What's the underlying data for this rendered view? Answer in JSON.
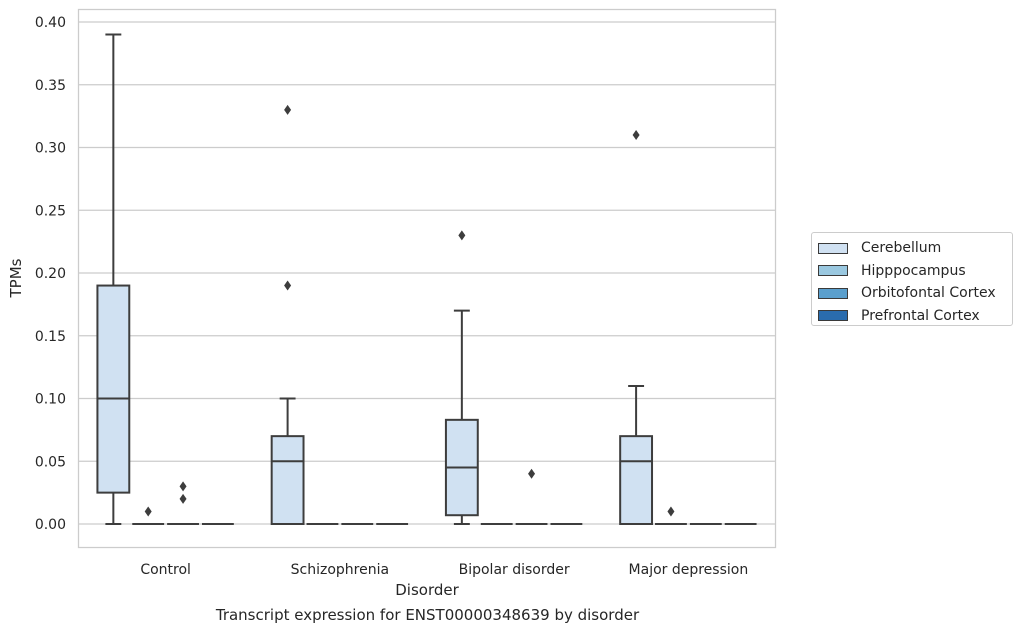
{
  "chart_data": {
    "type": "box",
    "title": "Transcript expression for ENST00000348639 by disorder",
    "xlabel": "Disorder",
    "ylabel": "TPMs",
    "ylim": [
      -0.02,
      0.41
    ],
    "yticks": [
      "0.00",
      "0.05",
      "0.10",
      "0.15",
      "0.20",
      "0.25",
      "0.30",
      "0.35",
      "0.40"
    ],
    "ytick_values": [
      0,
      0.05,
      0.1,
      0.15,
      0.2,
      0.25,
      0.3,
      0.35,
      0.4
    ],
    "grid": true,
    "legend_position": "right",
    "categories": [
      "Control",
      "Schizophrenia",
      "Bipolar disorder",
      "Major depression"
    ],
    "series": [
      {
        "name": "Cerebellum",
        "color": "#d0e1f2",
        "boxes": [
          {
            "whislo": 0.0,
            "q1": 0.025,
            "median": 0.1,
            "q3": 0.19,
            "whishi": 0.39,
            "fliers": []
          },
          {
            "whislo": 0.0,
            "q1": 0.0,
            "median": 0.05,
            "q3": 0.07,
            "whishi": 0.1,
            "fliers": [
              0.19,
              0.33
            ]
          },
          {
            "whislo": 0.0,
            "q1": 0.007,
            "median": 0.045,
            "q3": 0.083,
            "whishi": 0.17,
            "fliers": [
              0.23
            ]
          },
          {
            "whislo": 0.0,
            "q1": 0.0,
            "median": 0.05,
            "q3": 0.07,
            "whishi": 0.11,
            "fliers": [
              0.31
            ]
          }
        ]
      },
      {
        "name": "Hipppocampus",
        "color": "#9ac8e0",
        "boxes": [
          {
            "whislo": 0.0,
            "q1": 0.0,
            "median": 0.0,
            "q3": 0.0,
            "whishi": 0.0,
            "fliers": [
              0.01
            ]
          },
          {
            "whislo": 0.0,
            "q1": 0.0,
            "median": 0.0,
            "q3": 0.0,
            "whishi": 0.0,
            "fliers": []
          },
          {
            "whislo": 0.0,
            "q1": 0.0,
            "median": 0.0,
            "q3": 0.0,
            "whishi": 0.0,
            "fliers": []
          },
          {
            "whislo": 0.0,
            "q1": 0.0,
            "median": 0.0,
            "q3": 0.0,
            "whishi": 0.0,
            "fliers": [
              0.01
            ]
          }
        ]
      },
      {
        "name": "Orbitofontal Cortex",
        "color": "#5a9fcd",
        "boxes": [
          {
            "whislo": 0.0,
            "q1": 0.0,
            "median": 0.0,
            "q3": 0.0,
            "whishi": 0.0,
            "fliers": [
              0.02,
              0.03
            ]
          },
          {
            "whislo": 0.0,
            "q1": 0.0,
            "median": 0.0,
            "q3": 0.0,
            "whishi": 0.0,
            "fliers": []
          },
          {
            "whislo": 0.0,
            "q1": 0.0,
            "median": 0.0,
            "q3": 0.0,
            "whishi": 0.0,
            "fliers": [
              0.04
            ]
          },
          {
            "whislo": 0.0,
            "q1": 0.0,
            "median": 0.0,
            "q3": 0.0,
            "whishi": 0.0,
            "fliers": []
          }
        ]
      },
      {
        "name": "Prefrontal Cortex",
        "color": "#2a6cae",
        "boxes": [
          {
            "whislo": 0.0,
            "q1": 0.0,
            "median": 0.0,
            "q3": 0.0,
            "whishi": 0.0,
            "fliers": []
          },
          {
            "whislo": 0.0,
            "q1": 0.0,
            "median": 0.0,
            "q3": 0.0,
            "whishi": 0.0,
            "fliers": []
          },
          {
            "whislo": 0.0,
            "q1": 0.0,
            "median": 0.0,
            "q3": 0.0,
            "whishi": 0.0,
            "fliers": []
          },
          {
            "whislo": 0.0,
            "q1": 0.0,
            "median": 0.0,
            "q3": 0.0,
            "whishi": 0.0,
            "fliers": []
          }
        ]
      }
    ]
  }
}
